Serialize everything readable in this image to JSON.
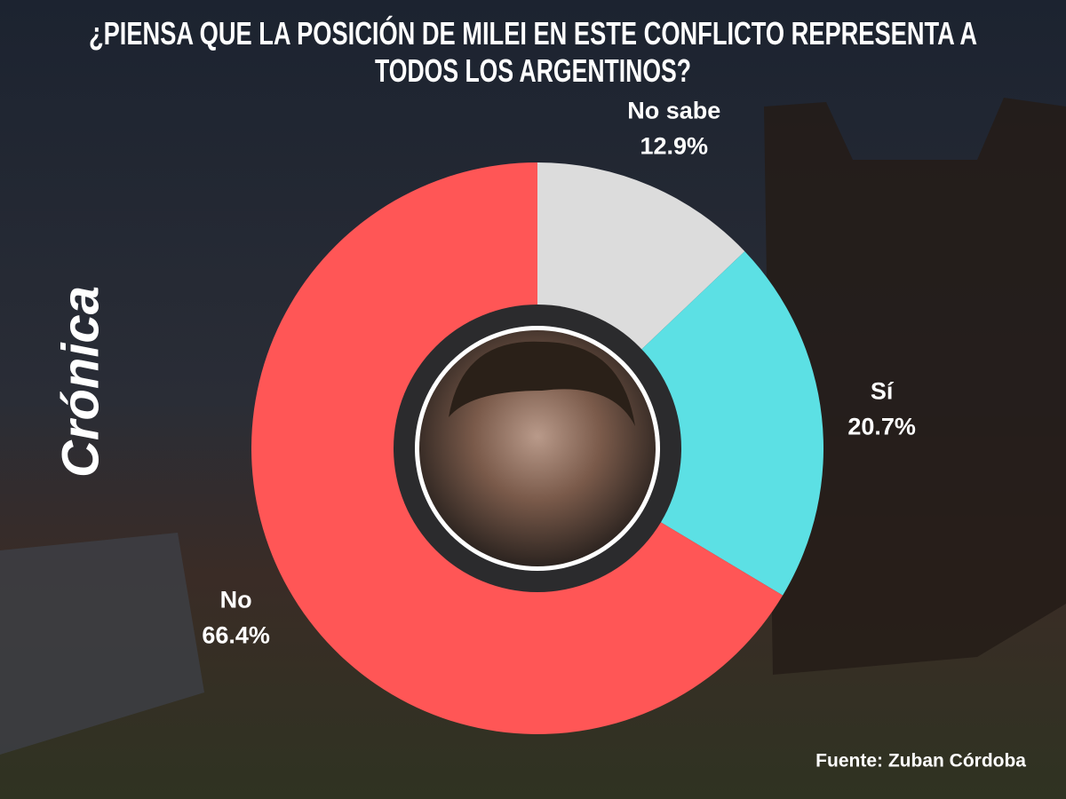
{
  "chart_data": {
    "type": "pie",
    "title": [
      "¿PIENSA QUE LA POSICIÓN DE MILEI EN ESTE CONFLICTO REPRESENTA A",
      "TODOS LOS ARGENTINOS?"
    ],
    "categories": [
      "No sabe",
      "Sí",
      "No"
    ],
    "values": [
      12.9,
      20.7,
      66.4
    ],
    "value_labels": [
      "12.9%",
      "20.7%",
      "66.4%"
    ],
    "colors": [
      "#dcdcdc",
      "#5ce0e4",
      "#ff5656"
    ],
    "donut": true,
    "source": "Fuente: Zuban Córdoba",
    "logo": "Crónica"
  }
}
